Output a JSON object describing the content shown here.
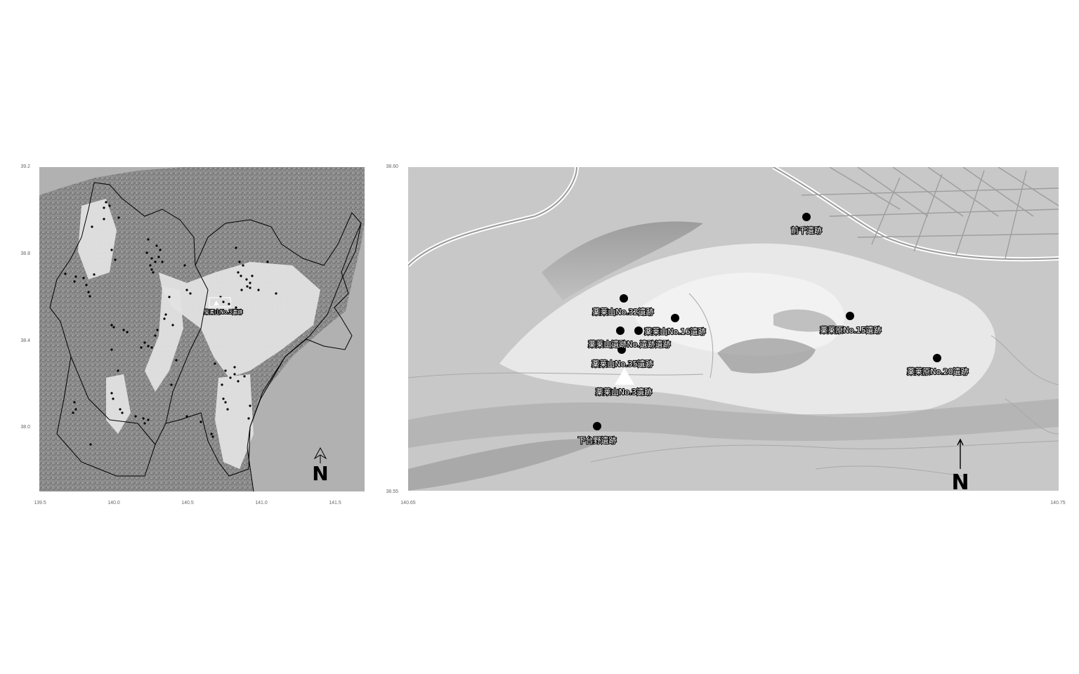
{
  "left_map": {
    "y_ticks": [
      "39.2",
      "38.8",
      "38.4",
      "38.0"
    ],
    "x_ticks": [
      "139.5",
      "140.0",
      "140.5",
      "141.0",
      "141.5"
    ],
    "label": "柴柔山No.3遺跡",
    "north": "N"
  },
  "right_map": {
    "y_ticks": [
      "38.60",
      "38.55"
    ],
    "x_ticks": [
      "140.65",
      "140.75"
    ],
    "north": "N",
    "sites": [
      {
        "id": "maete",
        "label": "前千遺跡"
      },
      {
        "id": "no32",
        "label": "薬莱山No.32遺跡"
      },
      {
        "id": "no16",
        "label": "薬莱山No.16遺跡"
      },
      {
        "id": "no15",
        "label": "薬莱原No.15遺跡"
      },
      {
        "id": "overlap",
        "label": "薬莱山遺跡No.遺跡遺跡"
      },
      {
        "id": "no35",
        "label": "薬莱山No.35遺跡"
      },
      {
        "id": "no20",
        "label": "薬莱原No.20遺跡"
      },
      {
        "id": "no3",
        "label": "薬莱山No.3遺跡"
      },
      {
        "id": "shimo",
        "label": "下台野遺跡"
      }
    ]
  },
  "colors": {
    "sea": "#b1b1b1",
    "lowland": "#e4e4e4",
    "mountain": "#8e8e8e",
    "point": "#000000",
    "marker": "#ffffff"
  }
}
